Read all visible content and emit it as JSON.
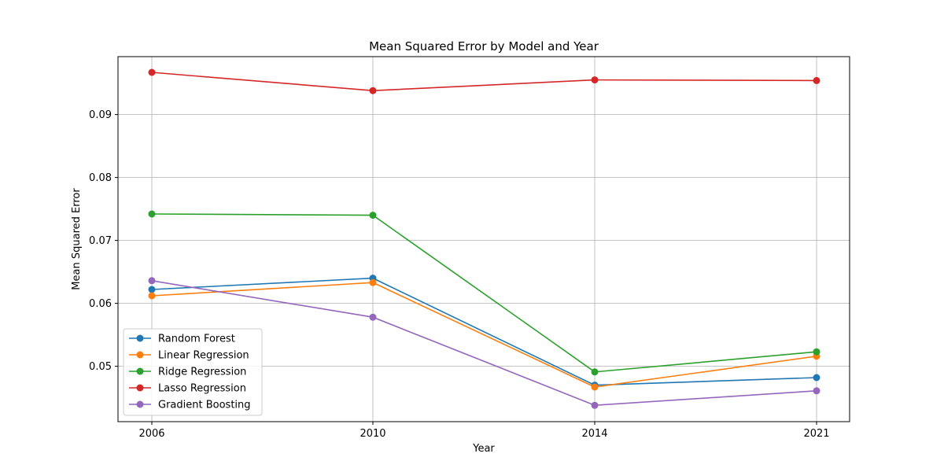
{
  "chart_data": {
    "type": "line",
    "title": "Mean Squared Error by Model and Year",
    "xlabel": "Year",
    "ylabel": "Mean Squared Error",
    "categories": [
      "2006",
      "2010",
      "2014",
      "2021"
    ],
    "ylim": [
      0.0412,
      0.0992
    ],
    "yticks": [
      0.05,
      0.06,
      0.07,
      0.08,
      0.09
    ],
    "ytick_labels": [
      "0.05",
      "0.06",
      "0.07",
      "0.08",
      "0.09"
    ],
    "grid": true,
    "legend_position": "lower-left",
    "series": [
      {
        "name": "Random Forest",
        "color": "#1f77b4",
        "values": [
          0.0622,
          0.064,
          0.047,
          0.0482
        ]
      },
      {
        "name": "Linear Regression",
        "color": "#ff7f0e",
        "values": [
          0.0612,
          0.0633,
          0.0467,
          0.0516
        ]
      },
      {
        "name": "Ridge Regression",
        "color": "#2ca02c",
        "values": [
          0.0742,
          0.074,
          0.0491,
          0.0523
        ]
      },
      {
        "name": "Lasso Regression",
        "color": "#d62728",
        "values": [
          0.0967,
          0.0938,
          0.0955,
          0.0954
        ]
      },
      {
        "name": "Gradient Boosting",
        "color": "#9467bd",
        "values": [
          0.0636,
          0.0578,
          0.0438,
          0.0461
        ]
      }
    ]
  }
}
